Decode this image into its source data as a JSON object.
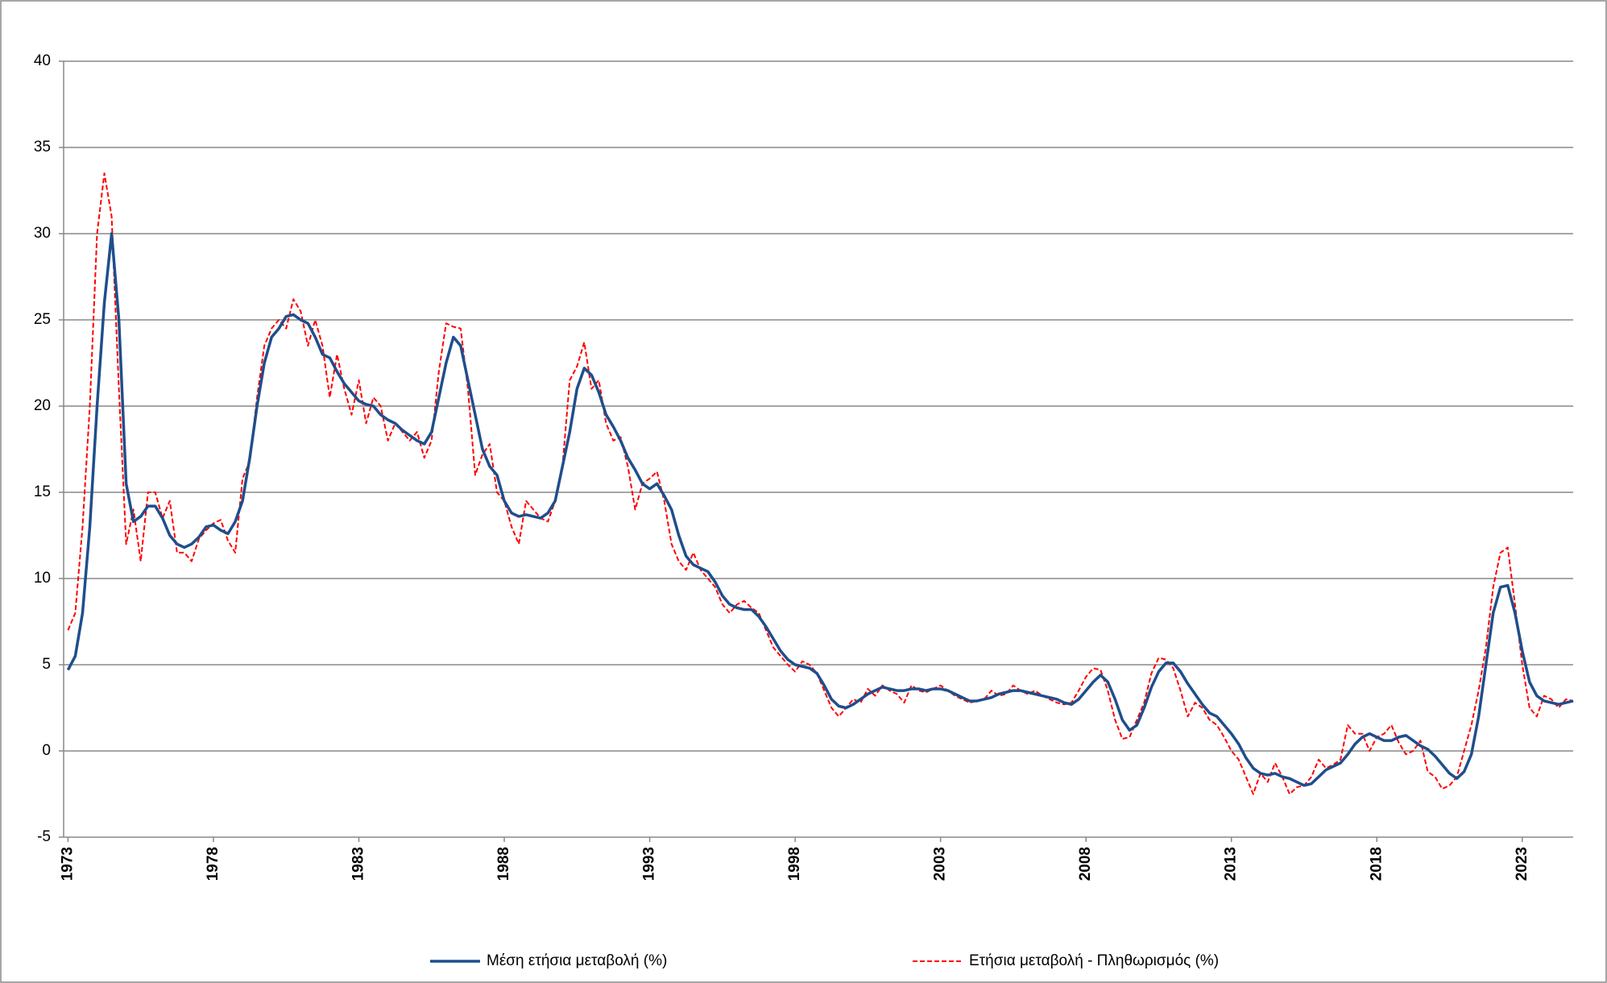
{
  "chart_data": {
    "type": "line",
    "x": [
      1973,
      1973.25,
      1973.5,
      1973.75,
      1974,
      1974.25,
      1974.5,
      1974.75,
      1975,
      1975.25,
      1975.5,
      1975.75,
      1976,
      1976.25,
      1976.5,
      1976.75,
      1977,
      1977.25,
      1977.5,
      1977.75,
      1978,
      1978.25,
      1978.5,
      1978.75,
      1979,
      1979.25,
      1979.5,
      1979.75,
      1980,
      1980.25,
      1980.5,
      1980.75,
      1981,
      1981.25,
      1981.5,
      1981.75,
      1982,
      1982.25,
      1982.5,
      1982.75,
      1983,
      1983.25,
      1983.5,
      1983.75,
      1984,
      1984.25,
      1984.5,
      1984.75,
      1985,
      1985.25,
      1985.5,
      1985.75,
      1986,
      1986.25,
      1986.5,
      1986.75,
      1987,
      1987.25,
      1987.5,
      1987.75,
      1988,
      1988.25,
      1988.5,
      1988.75,
      1989,
      1989.25,
      1989.5,
      1989.75,
      1990,
      1990.25,
      1990.5,
      1990.75,
      1991,
      1991.25,
      1991.5,
      1991.75,
      1992,
      1992.25,
      1992.5,
      1992.75,
      1993,
      1993.25,
      1993.5,
      1993.75,
      1994,
      1994.25,
      1994.5,
      1994.75,
      1995,
      1995.25,
      1995.5,
      1995.75,
      1996,
      1996.25,
      1996.5,
      1996.75,
      1997,
      1997.25,
      1997.5,
      1997.75,
      1998,
      1998.25,
      1998.5,
      1998.75,
      1999,
      1999.25,
      1999.5,
      1999.75,
      2000,
      2000.25,
      2000.5,
      2000.75,
      2001,
      2001.25,
      2001.5,
      2001.75,
      2002,
      2002.25,
      2002.5,
      2002.75,
      2003,
      2003.25,
      2003.5,
      2003.75,
      2004,
      2004.25,
      2004.5,
      2004.75,
      2005,
      2005.25,
      2005.5,
      2005.75,
      2006,
      2006.25,
      2006.5,
      2006.75,
      2007,
      2007.25,
      2007.5,
      2007.75,
      2008,
      2008.25,
      2008.5,
      2008.75,
      2009,
      2009.25,
      2009.5,
      2009.75,
      2010,
      2010.25,
      2010.5,
      2010.75,
      2011,
      2011.25,
      2011.5,
      2011.75,
      2012,
      2012.25,
      2012.5,
      2012.75,
      2013,
      2013.25,
      2013.5,
      2013.75,
      2014,
      2014.25,
      2014.5,
      2014.75,
      2015,
      2015.25,
      2015.5,
      2015.75,
      2016,
      2016.25,
      2016.5,
      2016.75,
      2017,
      2017.25,
      2017.5,
      2017.75,
      2018,
      2018.25,
      2018.5,
      2018.75,
      2019,
      2019.25,
      2019.5,
      2019.75,
      2020,
      2020.25,
      2020.5,
      2020.75,
      2021,
      2021.25,
      2021.5,
      2021.75,
      2022,
      2022.25,
      2022.5,
      2022.75,
      2023,
      2023.25,
      2023.5,
      2023.75,
      2024,
      2024.25,
      2024.5,
      2024.75
    ],
    "series": [
      {
        "name": "Μέση ετήσια μεταβολή (%)",
        "color": "#1f4e8c",
        "dashed": false,
        "values": [
          4.7,
          5.5,
          8,
          13,
          20,
          26,
          30,
          25,
          15.5,
          13.3,
          13.6,
          14.2,
          14.2,
          13.5,
          12.5,
          12,
          11.8,
          12,
          12.4,
          13,
          13.1,
          12.8,
          12.6,
          13.3,
          14.5,
          17,
          20,
          22.5,
          24,
          24.5,
          25.2,
          25.3,
          25,
          24.8,
          24,
          23,
          22.8,
          22,
          21.3,
          20.8,
          20.3,
          20.1,
          20,
          19.5,
          19.2,
          19,
          18.6,
          18.3,
          18,
          17.8,
          18.5,
          20.5,
          22.5,
          24,
          23.5,
          21.5,
          19.5,
          17.5,
          16.5,
          16,
          14.5,
          13.8,
          13.6,
          13.7,
          13.6,
          13.5,
          13.8,
          14.5,
          16.5,
          18.5,
          21,
          22.2,
          21.8,
          20.8,
          19.5,
          18.8,
          18,
          17,
          16.3,
          15.5,
          15.2,
          15.5,
          14.8,
          14,
          12.5,
          11.3,
          10.8,
          10.6,
          10.4,
          9.8,
          9,
          8.5,
          8.3,
          8.2,
          8.2,
          7.8,
          7.2,
          6.5,
          5.8,
          5.3,
          5,
          4.9,
          4.8,
          4.5,
          3.8,
          3,
          2.6,
          2.5,
          2.7,
          3,
          3.3,
          3.5,
          3.7,
          3.6,
          3.5,
          3.5,
          3.6,
          3.6,
          3.5,
          3.6,
          3.6,
          3.5,
          3.3,
          3.1,
          2.9,
          2.9,
          3,
          3.1,
          3.3,
          3.4,
          3.5,
          3.5,
          3.4,
          3.3,
          3.2,
          3.1,
          3,
          2.8,
          2.7,
          3,
          3.5,
          4,
          4.4,
          4,
          3,
          1.8,
          1.2,
          1.5,
          2.5,
          3.7,
          4.6,
          5.1,
          5.1,
          4.6,
          3.9,
          3.3,
          2.7,
          2.2,
          2,
          1.5,
          1,
          0.4,
          -0.4,
          -1,
          -1.3,
          -1.4,
          -1.3,
          -1.5,
          -1.6,
          -1.8,
          -2,
          -1.9,
          -1.5,
          -1.1,
          -0.9,
          -0.7,
          -0.2,
          0.4,
          0.8,
          1,
          0.8,
          0.6,
          0.6,
          0.8,
          0.9,
          0.6,
          0.3,
          0.1,
          -0.3,
          -0.8,
          -1.3,
          -1.6,
          -1.2,
          -0.2,
          2,
          5,
          8,
          9.5,
          9.6,
          8,
          5.8,
          4,
          3.2,
          2.9,
          2.8,
          2.7,
          2.8,
          2.9
        ]
      },
      {
        "name": "Ετήσια μεταβολή - Πληθωρισμός (%)",
        "color": "#ff0000",
        "dashed": true,
        "values": [
          7,
          8,
          13,
          20,
          30,
          33.5,
          31,
          21,
          12,
          14,
          11,
          15,
          15,
          13.5,
          14.5,
          11.5,
          11.5,
          11,
          12.3,
          12.8,
          13.2,
          13.4,
          12.2,
          11.5,
          15.8,
          16.8,
          20.5,
          23.5,
          24.5,
          25,
          24.5,
          26.2,
          25.5,
          23.5,
          25,
          23.5,
          20.5,
          23,
          21,
          19.5,
          21.5,
          19,
          20.5,
          20,
          18,
          19,
          18.5,
          18,
          18.5,
          17,
          18,
          22,
          24.8,
          24.6,
          24.5,
          21,
          16,
          17.2,
          17.8,
          15,
          14.5,
          13,
          12,
          14.5,
          14,
          13.5,
          13.3,
          14.5,
          16.5,
          21.5,
          22.3,
          23.7,
          21,
          21.5,
          19,
          18,
          18.2,
          16.5,
          14,
          15.5,
          15.8,
          16.2,
          14.5,
          12,
          11,
          10.5,
          11.5,
          10.5,
          10,
          9.5,
          8.5,
          8,
          8.5,
          8.7,
          8.3,
          8,
          7,
          6,
          5.5,
          5,
          4.6,
          5.2,
          5,
          4.5,
          3.5,
          2.5,
          2,
          2.5,
          3,
          2.8,
          3.6,
          3.2,
          3.8,
          3.5,
          3.3,
          2.8,
          3.8,
          3.5,
          3.4,
          3.6,
          3.8,
          3.5,
          3.2,
          3,
          2.8,
          2.9,
          3,
          3.5,
          3.2,
          3.3,
          3.8,
          3.5,
          3.3,
          3.5,
          3.2,
          3,
          2.8,
          2.7,
          2.8,
          3.5,
          4.3,
          4.8,
          4.7,
          3.5,
          1.8,
          0.7,
          0.8,
          1.8,
          2.8,
          4.5,
          5.4,
          5.3,
          4.8,
          3.5,
          2,
          2.8,
          2.5,
          1.8,
          1.5,
          0.8,
          0,
          -0.5,
          -1.5,
          -2.5,
          -1.3,
          -1.8,
          -0.7,
          -1.5,
          -2.5,
          -2.1,
          -2,
          -1.5,
          -0.5,
          -1,
          -0.8,
          -0.5,
          1.5,
          1,
          1,
          0,
          0.8,
          1,
          1.5,
          0.5,
          -0.2,
          0,
          0.6,
          -1.2,
          -1.5,
          -2.2,
          -2,
          -1.5,
          0,
          1.5,
          3.5,
          6,
          9.5,
          11.5,
          11.8,
          8.5,
          5,
          2.5,
          2,
          3.2,
          3,
          2.5,
          3,
          2.9
        ]
      }
    ],
    "xlim": [
      1972.85,
      2024.75
    ],
    "xticks": [
      1973,
      1978,
      1983,
      1988,
      1993,
      1998,
      2003,
      2008,
      2013,
      2018,
      2023
    ],
    "ylim": [
      -5,
      40
    ],
    "yticks": [
      -5,
      0,
      5,
      10,
      15,
      20,
      25,
      30,
      35,
      40
    ],
    "grid": true,
    "legend": "bottom"
  }
}
